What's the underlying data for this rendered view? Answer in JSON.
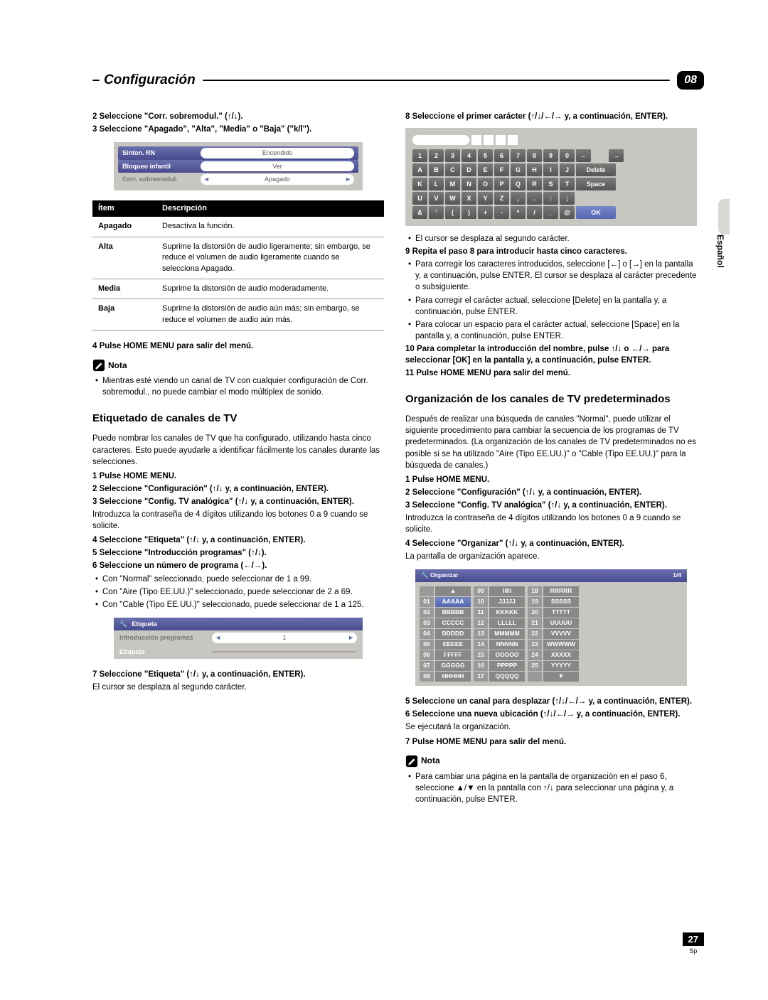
{
  "header": {
    "title": "Configuración",
    "chapter": "08"
  },
  "col1": {
    "s2": "2   Seleccione \"Corr. sobremodul.\" (↑/↓).",
    "s3": "3   Seleccione \"Apagado\", \"Alta\", \"Media\" o \"Baja\" (\"k/l\").",
    "menu": {
      "r1l": "Sinton. RN",
      "r1v": "Encendido",
      "r2l": "Bloqueo infantil",
      "r2v": "Ver",
      "r3l": "Corr. sobremodul.",
      "r3v": "Apagado"
    },
    "th1": "Ítem",
    "th2": "Descripción",
    "row1a": "Apagado",
    "row1b": "Desactiva la función.",
    "row2a": "Alta",
    "row2b": "Suprime la distorsión de audio ligeramente; sin embargo, se reduce el volumen de audio ligeramente cuando se selecciona Apagado.",
    "row3a": "Media",
    "row3b": "Suprime la distorsión de audio moderadamente.",
    "row4a": "Baja",
    "row4b": "Suprime la distorsión de audio aún más; sin embargo, se reduce el volumen de audio aún más.",
    "s4": "4   Pulse HOME MENU para salir del menú.",
    "nota": "Nota",
    "notabody": "Mientras esté viendo un canal de TV con cualquier configuración de Corr. sobremodul., no puede cambiar el modo múltiplex de sonido.",
    "h2": "Etiquetado de canales de TV",
    "intro": "Puede nombrar los canales de TV que ha configurado, utilizando hasta cinco caracteres. Esto puede ayudarle a identificar fácilmente los canales durante las selecciones.",
    "e1": "1   Pulse HOME MENU.",
    "e2": "2   Seleccione \"Configuración\" (↑/↓ y, a continuación, ENTER).",
    "e3": "3   Seleccione \"Config. TV analógica\" (↑/↓ y, a continuación, ENTER).",
    "e3b": "Introduzca la contraseña de 4 dígitos utilizando los botones 0 a 9 cuando se solicite.",
    "e4": "4   Seleccione \"Etiqueta\" (↑/↓ y, a continuación, ENTER).",
    "e5": "5   Seleccione \"Introducción programas\" (↑/↓).",
    "e6": "6   Seleccione un número de programa (←/→).",
    "e6a": "Con \"Normal\" seleccionado, puede seleccionar de 1 a 99.",
    "e6b": "Con \"Aire (Tipo EE.UU.)\" seleccionado, puede seleccionar de 2 a 69.",
    "e6c": "Con \"Cable (Tipo EE.UU.)\" seleccionado, puede seleccionar de 1 a 125.",
    "etq": {
      "title": "Etiqueta",
      "r1": "Introducción programas",
      "r1v": "1",
      "r2": "Etiqueta"
    },
    "e7": "7   Seleccione \"Etiqueta\" (↑/↓ y, a continuación, ENTER).",
    "e7b": "El cursor se desplaza al segundo carácter."
  },
  "col2": {
    "s8": "8   Seleccione el primer carácter (↑/↓/←/→ y, a continuación, ENTER).",
    "kbd": {
      "row1": [
        "1",
        "2",
        "3",
        "4",
        "5",
        "6",
        "7",
        "8",
        "9",
        "0",
        "←",
        "",
        "→"
      ],
      "row2": [
        "A",
        "B",
        "C",
        "D",
        "E",
        "F",
        "G",
        "H",
        "I",
        "J",
        "Delete"
      ],
      "row3": [
        "K",
        "L",
        "M",
        "N",
        "O",
        "P",
        "Q",
        "R",
        "S",
        "T",
        "Space"
      ],
      "row4": [
        "U",
        "V",
        "W",
        "X",
        "Y",
        "Z",
        ",",
        ".",
        ":",
        ";"
      ],
      "row5": [
        "&",
        "'",
        "(",
        ")",
        "+",
        "-",
        "*",
        "/",
        "_",
        "@",
        "OK"
      ]
    },
    "k1": "El cursor se desplaza al segundo carácter.",
    "s9": "9   Repita el paso 8 para introducir hasta cinco caracteres.",
    "s9a": "Para corregir los caracteres introducidos, seleccione [←] o [→] en la pantalla y, a continuación, pulse ENTER. El cursor se desplaza al carácter precedente o subsiguiente.",
    "s9b": "Para corregir el carácter actual, seleccione [Delete] en la pantalla y, a continuación, pulse ENTER.",
    "s9c": "Para colocar un espacio para el carácter actual, seleccione [Space] en la pantalla y, a continuación, pulse ENTER.",
    "s10": "10   Para completar la introducción del nombre, pulse ↑/↓ o ←/→ para seleccionar [OK] en la pantalla y, a continuación, pulse ENTER.",
    "s11": "11   Pulse HOME MENU para salir del menú.",
    "h2": "Organización de los canales de TV predeterminados",
    "intro": "Después de realizar una búsqueda de canales \"Normal\", puede utilizar el siguiente procedimiento para cambiar la secuencia de los programas de TV predeterminados. (La organización de los canales de TV predeterminados no es posible si se ha utilizado \"Aire (Tipo EE.UU.)\" o \"Cable (Tipo EE.UU.)\" para la búsqueda de canales.)",
    "o1": "1   Pulse HOME MENU.",
    "o2": "2   Seleccione \"Configuración\" (↑/↓ y, a continuación, ENTER).",
    "o3": "3   Seleccione \"Config. TV analógica\" (↑/↓ y, a continuación, ENTER).",
    "o3b": "Introduzca la contraseña de 4 dígitos utilizando los botones 0 a 9 cuando se solicite.",
    "o4": "4   Seleccione \"Organizar\" (↑/↓ y, a continuación, ENTER).",
    "o4b": "La pantalla de organización aparece.",
    "org": {
      "title": "Organizar",
      "page": "1/4",
      "c1n": [
        "01",
        "02",
        "03",
        "04",
        "05",
        "06",
        "07",
        "08"
      ],
      "c1v": [
        "AAAAA",
        "BBBBB",
        "CCCCC",
        "DDDDD",
        "EEEEE",
        "FFFFF",
        "GGGGG",
        "HHHHH"
      ],
      "c2n": [
        "09",
        "10",
        "11",
        "12",
        "13",
        "14",
        "15",
        "16",
        "17"
      ],
      "c2v": [
        "IIIII",
        "JJJJJ",
        "KKKKK",
        "LLLLL",
        "MMMMM",
        "NNNNN",
        "OOOOO",
        "PPPPP",
        "QQQQQ"
      ],
      "c3n": [
        "18",
        "19",
        "20",
        "21",
        "22",
        "23",
        "24",
        "25"
      ],
      "c3v": [
        "RRRRR",
        "SSSSS",
        "TTTTT",
        "UUUUU",
        "VVVVV",
        "WWWWW",
        "XXXXX",
        "YYYYY"
      ]
    },
    "o5": "5   Seleccione un canal para desplazar (↑/↓/←/→ y, a continuación, ENTER).",
    "o6": "6   Seleccione una nueva ubicación (↑/↓/←/→ y, a continuación, ENTER).",
    "o6b": "Se ejecutará la organización.",
    "o7": "7   Pulse HOME MENU para salir del menú.",
    "nota": "Nota",
    "notabody": "Para cambiar una página en la pantalla de organización en el paso 6, seleccione ▲/▼ en la pantalla con ↑/↓ para seleccionar una página y, a continuación, pulse ENTER."
  },
  "side": "Español",
  "page": {
    "num": "27",
    "lang": "Sp"
  }
}
